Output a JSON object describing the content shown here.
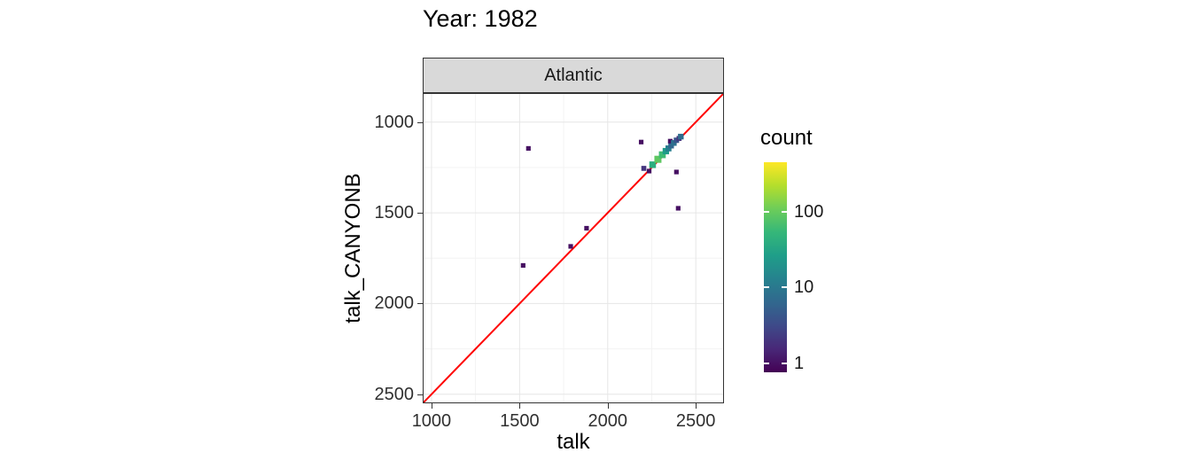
{
  "title": "Year: 1982",
  "facet": {
    "label": "Atlantic"
  },
  "axes": {
    "x": {
      "label": "talk",
      "ticks": [
        1000,
        1500,
        2000,
        2500
      ],
      "tick_labels": [
        "1000",
        "1500",
        "2000",
        "2500"
      ]
    },
    "y": {
      "label": "talk_CANYONB",
      "ticks": [
        1000,
        1500,
        2000,
        2500
      ],
      "tick_labels": [
        "2500",
        "2000",
        "1500",
        "1000"
      ]
    }
  },
  "legend": {
    "title": "count",
    "ticks": [
      100,
      10,
      1
    ],
    "tick_labels": [
      "100",
      "10",
      "1"
    ],
    "scale": "log10",
    "bar_log_range": [
      -0.12,
      2.65
    ],
    "gradient": [
      "#440154",
      "#482878",
      "#3E4A89",
      "#31688E",
      "#26828E",
      "#1F9E89",
      "#35B779",
      "#6DCD59",
      "#B4DE2C",
      "#FDE725"
    ]
  },
  "colors": {
    "refline": "#FF0000",
    "panel_border": "#333333",
    "grid_major": "#E6E6E6",
    "grid_minor": "#F3F3F3",
    "strip_bg": "#D9D9D9",
    "axis_text": "#303030"
  },
  "chart_data": {
    "type": "scatter",
    "title": "Year: 1982",
    "facet": "Atlantic",
    "xlabel": "talk",
    "ylabel": "talk_CANYONB",
    "xlim": [
      950,
      2660
    ],
    "ylim": [
      950,
      2660
    ],
    "grid": true,
    "legend_position": "right",
    "reference_line": {
      "slope": 1,
      "intercept": 0,
      "color": "#FF0000"
    },
    "points": [
      {
        "x": 1550,
        "y": 2355,
        "count": 1
      },
      {
        "x": 1520,
        "y": 1710,
        "count": 1
      },
      {
        "x": 1790,
        "y": 1815,
        "count": 1
      },
      {
        "x": 1880,
        "y": 1915,
        "count": 1
      },
      {
        "x": 2190,
        "y": 2390,
        "count": 1
      },
      {
        "x": 2205,
        "y": 2245,
        "count": 2
      },
      {
        "x": 2235,
        "y": 2230,
        "count": 1
      },
      {
        "x": 2255,
        "y": 2265,
        "count": 40
      },
      {
        "x": 2285,
        "y": 2295,
        "count": 90
      },
      {
        "x": 2310,
        "y": 2320,
        "count": 60
      },
      {
        "x": 2330,
        "y": 2340,
        "count": 25
      },
      {
        "x": 2345,
        "y": 2355,
        "count": 12
      },
      {
        "x": 2360,
        "y": 2370,
        "count": 6
      },
      {
        "x": 2355,
        "y": 2395,
        "count": 1
      },
      {
        "x": 2375,
        "y": 2385,
        "count": 8
      },
      {
        "x": 2390,
        "y": 2400,
        "count": 4
      },
      {
        "x": 2405,
        "y": 2410,
        "count": 2
      },
      {
        "x": 2415,
        "y": 2420,
        "count": 7
      },
      {
        "x": 2390,
        "y": 2225,
        "count": 1
      },
      {
        "x": 2400,
        "y": 2025,
        "count": 1
      }
    ]
  }
}
